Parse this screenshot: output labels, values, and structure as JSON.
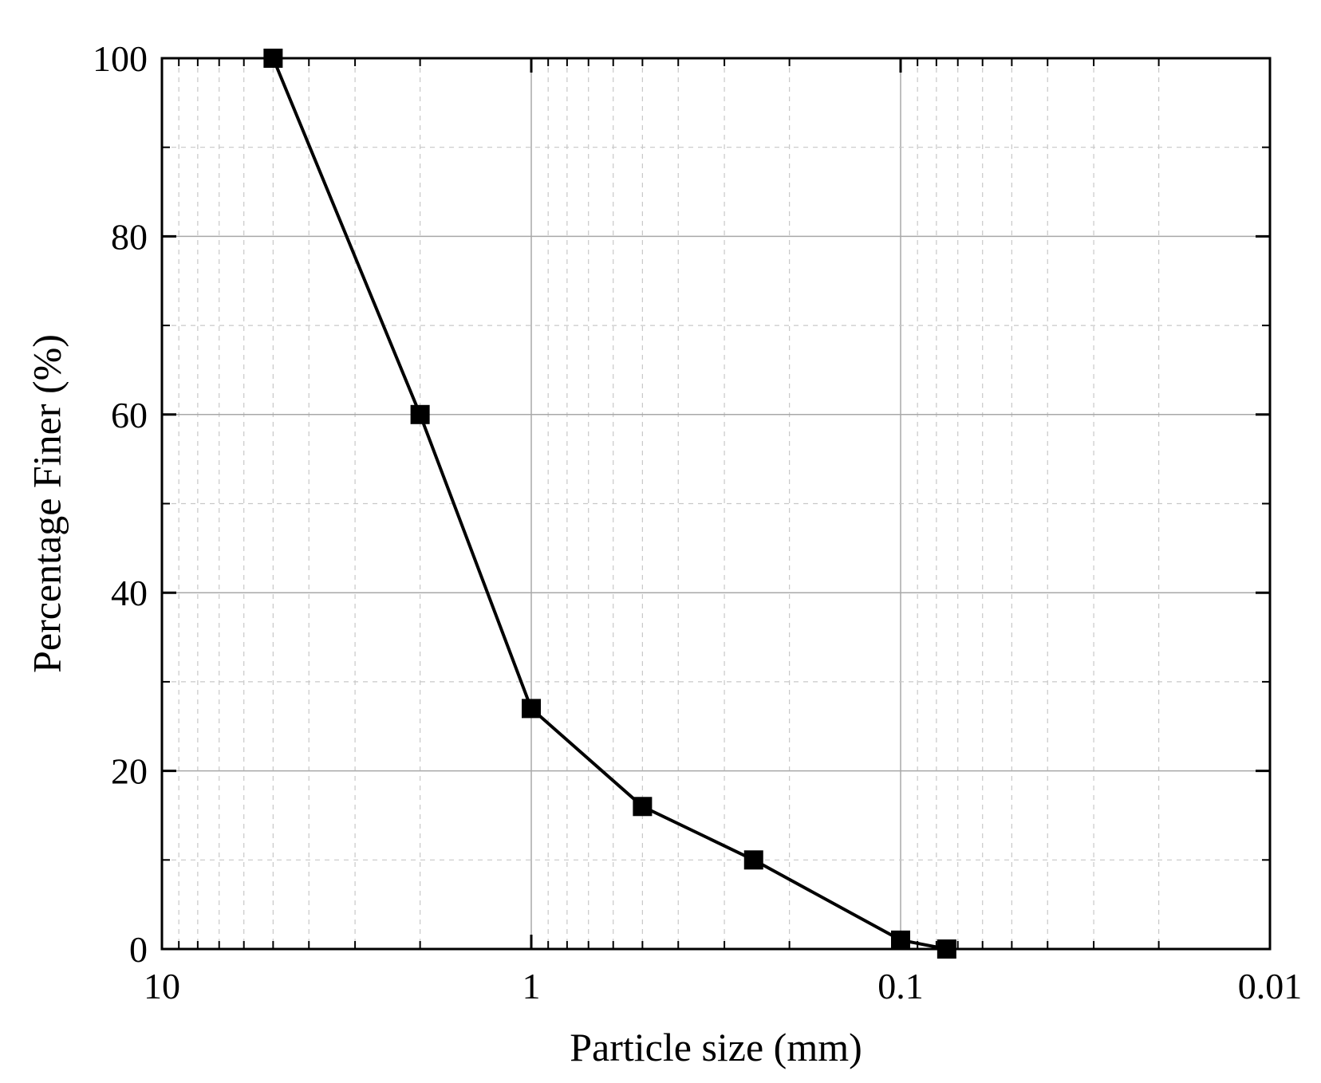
{
  "chart_data": {
    "type": "line",
    "xlabel": "Particle size (mm)",
    "ylabel": "Percentage Finer (%)",
    "x_scale": "log",
    "x_reversed": true,
    "xlim": [
      10,
      0.01
    ],
    "ylim": [
      0,
      100
    ],
    "x_ticks": [
      10,
      1,
      0.1,
      0.01
    ],
    "x_tick_labels": [
      "10",
      "1",
      "0.1",
      "0.01"
    ],
    "y_ticks": [
      0,
      20,
      40,
      60,
      80,
      100
    ],
    "y_tick_labels": [
      "0",
      "20",
      "40",
      "60",
      "80",
      "100"
    ],
    "grid": true,
    "marker": "square",
    "color": "#000000",
    "series": [
      {
        "x": [
          5,
          2,
          1,
          0.5,
          0.25,
          0.1,
          0.075
        ],
        "y": [
          100,
          60,
          27,
          16,
          10,
          1,
          0
        ]
      }
    ]
  }
}
